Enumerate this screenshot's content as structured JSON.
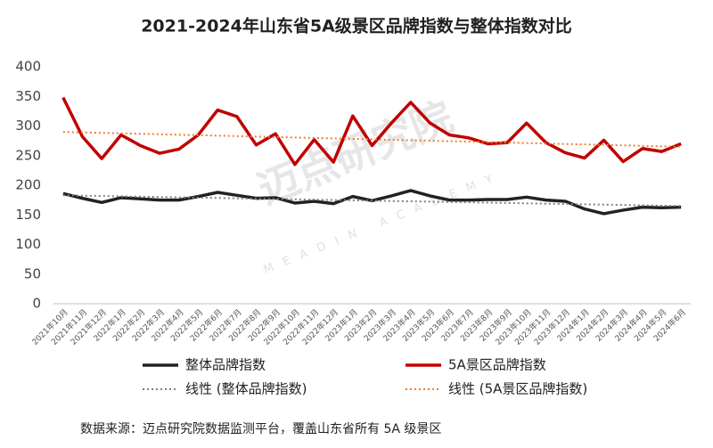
{
  "chart_data": {
    "type": "line",
    "title": "2021-2024年山东省5A级景区品牌指数与整体指数对比",
    "watermark": "迈点研究院",
    "watermark_sub": "MEADIN ACADEMY",
    "source_note": "数据来源：迈点研究院数据监测平台，覆盖山东省所有 5A 级景区",
    "categories": [
      "2021年10月",
      "2021年11月",
      "2021年12月",
      "2022年1月",
      "2022年2月",
      "2022年3月",
      "2022年4月",
      "2022年5月",
      "2022年6月",
      "2022年7月",
      "2022年8月",
      "2022年9月",
      "2022年10月",
      "2022年11月",
      "2022年12月",
      "2023年1月",
      "2023年2月",
      "2023年3月",
      "2023年4月",
      "2023年5月",
      "2023年6月",
      "2023年7月",
      "2023年8月",
      "2023年9月",
      "2023年10月",
      "2023年11月",
      "2023年12月",
      "2024年1月",
      "2024年2月",
      "2024年3月",
      "2024年4月",
      "2024年5月",
      "2024年6月"
    ],
    "series": [
      {
        "name": "整体品牌指数",
        "color": "#222222",
        "style": "solid",
        "values": [
          186,
          178,
          171,
          179,
          177,
          175,
          175,
          181,
          188,
          183,
          178,
          179,
          170,
          173,
          169,
          181,
          174,
          182,
          191,
          182,
          175,
          175,
          176,
          176,
          180,
          175,
          173,
          160,
          152,
          158,
          163,
          162,
          163
        ]
      },
      {
        "name": "5A景区品牌指数",
        "color": "#c00000",
        "style": "solid",
        "values": [
          348,
          282,
          245,
          285,
          267,
          254,
          261,
          285,
          327,
          316,
          268,
          287,
          235,
          277,
          239,
          317,
          267,
          305,
          340,
          305,
          285,
          280,
          270,
          272,
          305,
          272,
          255,
          246,
          276,
          240,
          262,
          257,
          270
        ]
      },
      {
        "name": "线性 (整体品牌指数)",
        "color": "#7f7f7f",
        "style": "dotted",
        "values": [
          183,
          182.4,
          181.9,
          181.3,
          180.8,
          180.2,
          179.6,
          179.1,
          178.5,
          177.9,
          177.4,
          176.8,
          176.3,
          175.7,
          175.1,
          174.6,
          174,
          173.4,
          172.9,
          172.3,
          171.8,
          171.2,
          170.6,
          170.1,
          169.5,
          168.9,
          168.4,
          167.8,
          167.3,
          166.7,
          166.1,
          165.6,
          165
        ]
      },
      {
        "name": "线性 (5A景区品牌指数)",
        "color": "#ed7d31",
        "style": "dotted",
        "values": [
          290,
          289.2,
          288.4,
          287.7,
          286.9,
          286.1,
          285.3,
          284.5,
          283.8,
          283,
          282.2,
          281.4,
          280.6,
          279.8,
          279.1,
          278.3,
          277.5,
          276.7,
          275.9,
          275.2,
          274.4,
          273.6,
          272.8,
          272,
          271.3,
          270.5,
          269.7,
          268.9,
          268.1,
          267.3,
          266.6,
          265.8,
          265
        ]
      }
    ],
    "ylim": [
      0,
      400
    ],
    "yticks": [
      0,
      50,
      100,
      150,
      200,
      250,
      300,
      350,
      400
    ],
    "grid": false
  }
}
